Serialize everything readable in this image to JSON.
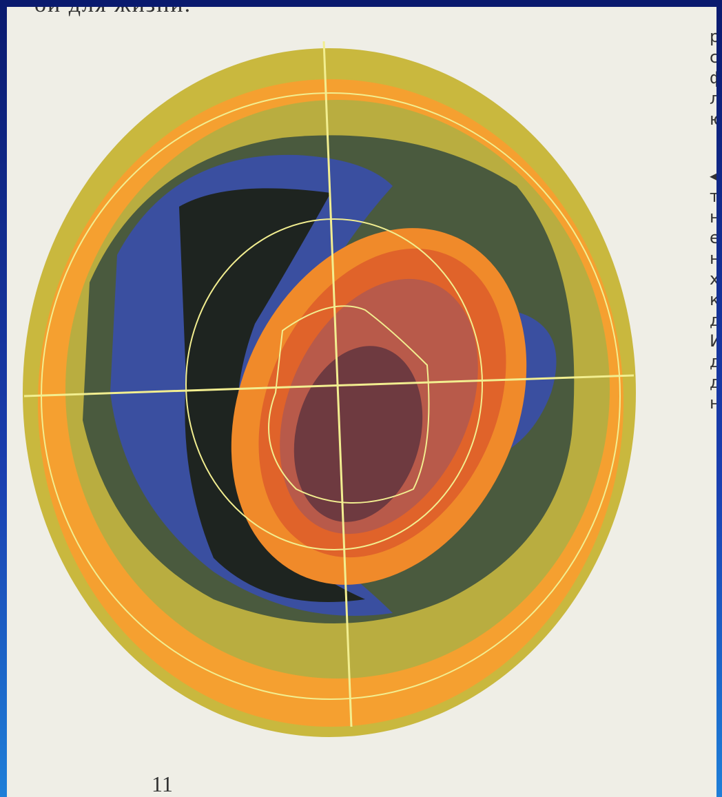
{
  "page": {
    "top_text": "ой для жизни.",
    "side_text": [
      "р",
      "с",
      "ф",
      "л",
      "ю",
      "◀",
      "т",
      "н",
      "е",
      "н",
      "х",
      "к",
      "д",
      "И",
      "д",
      "д",
      "н"
    ],
    "page_number": "11"
  }
}
